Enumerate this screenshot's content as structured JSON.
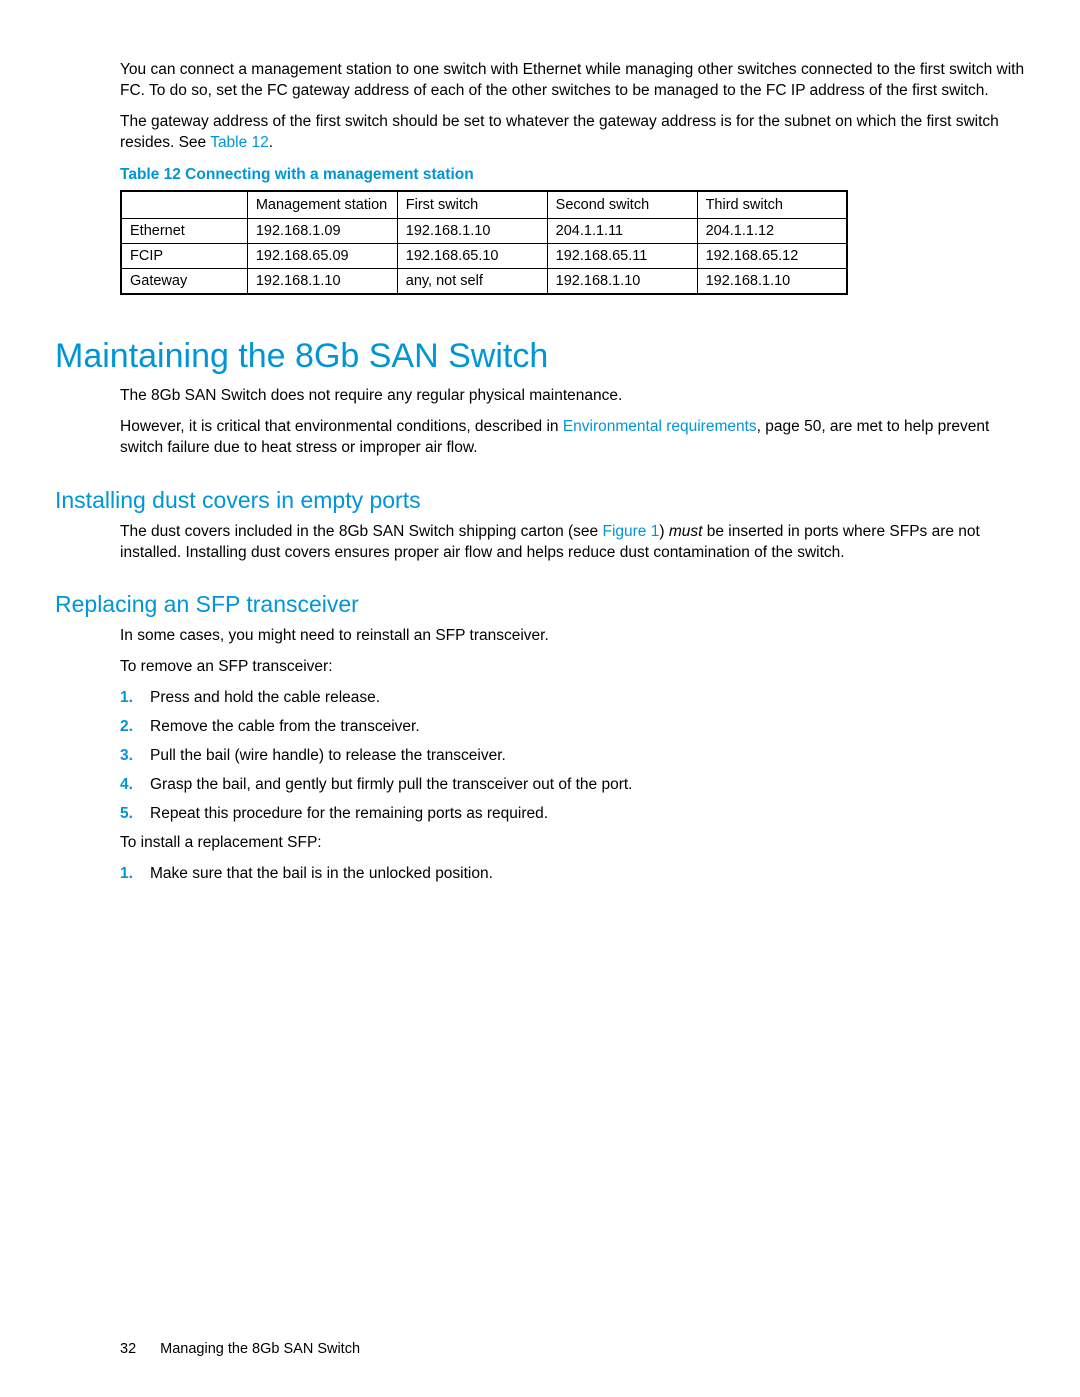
{
  "intro": {
    "p1": "You can connect a management station to one switch with Ethernet while managing other switches connected to the first switch with FC. To do so, set the FC gateway address of each of the other switches to be managed to the FC IP address of the first switch.",
    "p2_a": "The gateway address of the first switch should be set to whatever the gateway address is for the subnet on which the first switch resides. See ",
    "p2_link": "Table 12",
    "p2_b": "."
  },
  "table": {
    "caption": "Table 12 Connecting with a management station",
    "headers": [
      "",
      "Management station",
      "First switch",
      "Second switch",
      "Third switch"
    ],
    "rows": [
      [
        "Ethernet",
        "192.168.1.09",
        "192.168.1.10",
        "204.1.1.11",
        "204.1.1.12"
      ],
      [
        "FCIP",
        "192.168.65.09",
        "192.168.65.10",
        "192.168.65.11",
        "192.168.65.12"
      ],
      [
        "Gateway",
        "192.168.1.10",
        "any, not self",
        "192.168.1.10",
        "192.168.1.10"
      ]
    ],
    "col_widths": [
      "118px",
      "140px",
      "140px",
      "140px",
      "140px"
    ]
  },
  "h1": "Maintaining the 8Gb SAN Switch",
  "maint": {
    "p1": "The 8Gb SAN Switch does not require any regular physical maintenance.",
    "p2_a": "However, it is critical that environmental conditions, described in ",
    "p2_link": "Environmental requirements",
    "p2_b": ", page 50, are met to help prevent switch failure due to heat stress or improper air flow."
  },
  "h2_dust": "Installing dust covers in empty ports",
  "dust": {
    "p1_a": "The dust covers included in the 8Gb SAN Switch shipping carton (see ",
    "p1_link": "Figure 1",
    "p1_b": ") ",
    "p1_italic": "must",
    "p1_c": " be inserted in ports where SFPs are not installed. Installing dust covers ensures proper air flow and helps reduce dust contamination of the switch."
  },
  "h2_sfp": "Replacing an SFP transceiver",
  "sfp": {
    "p1": "In some cases, you might need to reinstall an SFP transceiver.",
    "p2": "To remove an SFP transceiver:",
    "remove_steps": [
      "Press and hold the cable release.",
      "Remove the cable from the transceiver.",
      "Pull the bail (wire handle) to release the transceiver.",
      "Grasp the bail, and gently but firmly pull the transceiver out of the port.",
      "Repeat this procedure for the remaining ports as required."
    ],
    "p3": "To install a replacement SFP:",
    "install_steps": [
      "Make sure that the bail is in the unlocked position."
    ]
  },
  "footer": {
    "page": "32",
    "title": "Managing the 8Gb SAN Switch"
  }
}
